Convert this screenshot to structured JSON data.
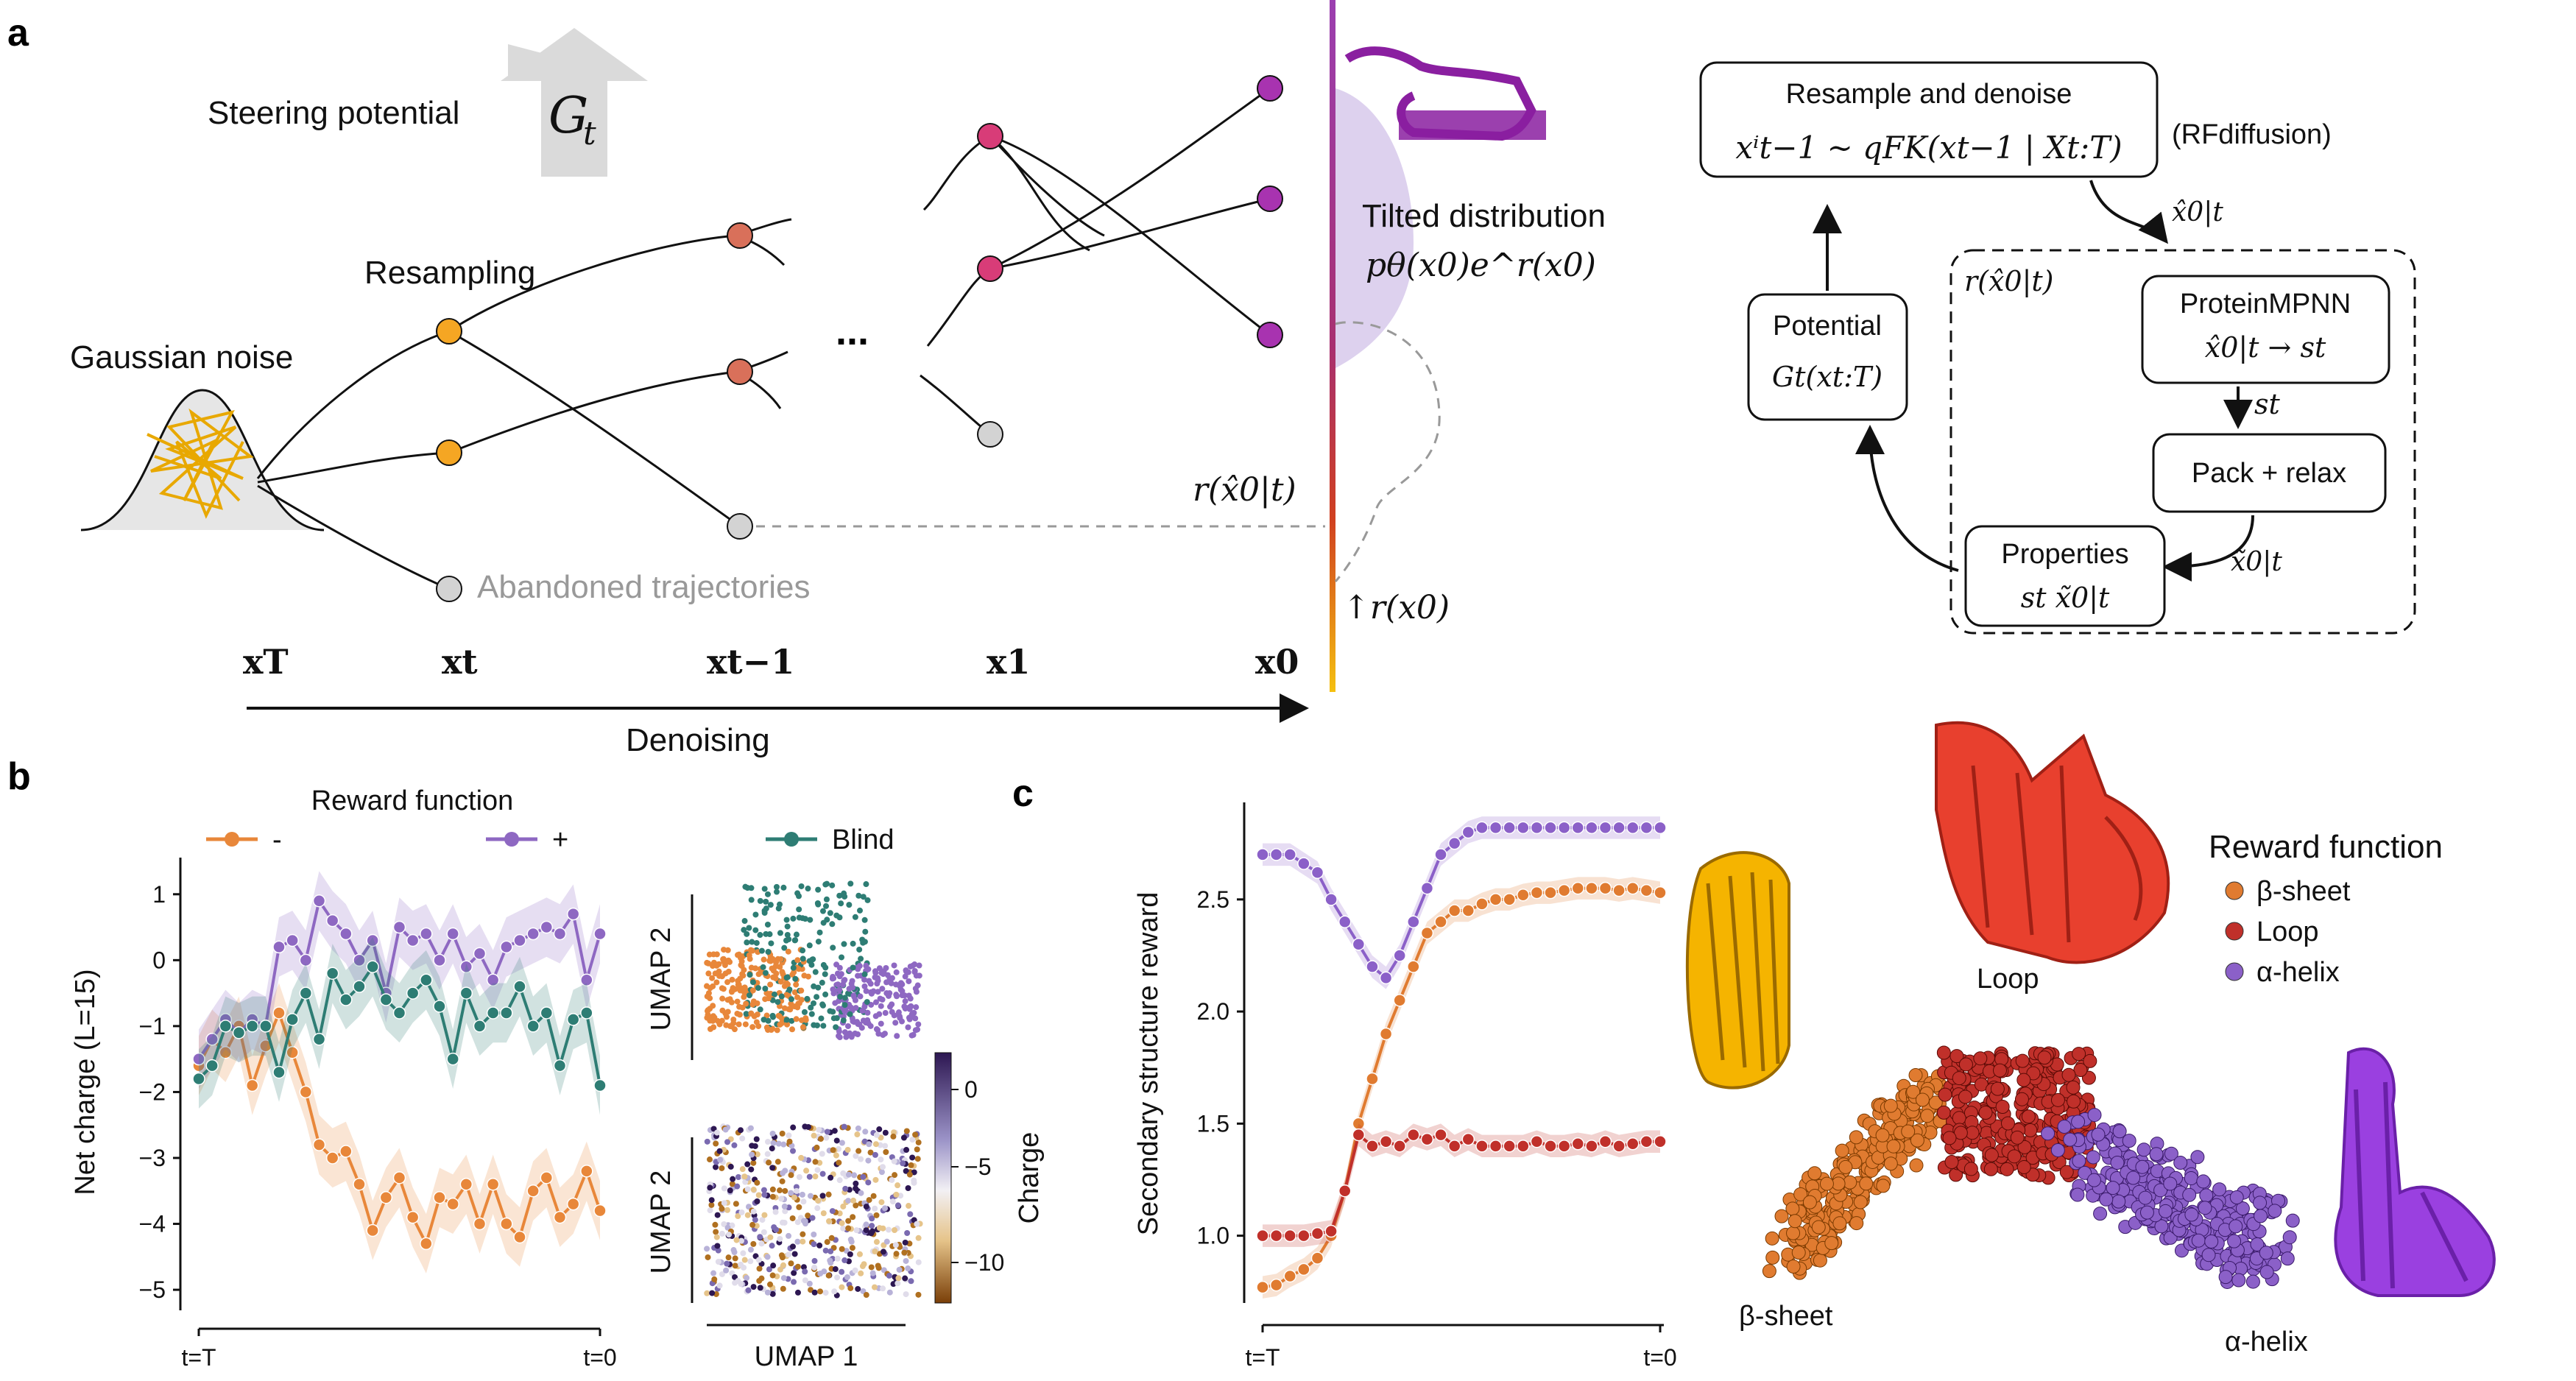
{
  "panel_a": {
    "letter": "a",
    "steering_potential": "Steering potential",
    "gt_symbol": "G",
    "gt_sub": "t",
    "resampling": "Resampling",
    "gaussian_noise": "Gaussian noise",
    "ellipsis": "...",
    "abandoned": "Abandoned trajectories",
    "tilted_title": "Tilted distribution",
    "tilted_formula": "pθ(x0)e^r(x0)",
    "r_hat": "r(x̂0|t)",
    "r_x0": "↑r(x0)",
    "denoising": "Denoising",
    "x_labels": [
      "xT",
      "xt",
      "xt−1",
      "x1",
      "x0"
    ]
  },
  "panel_a_flow": {
    "resample_title": "Resample and denoise",
    "resample_formula": "xⁱt−1 ~ qFK(xt−1 | Xt:T)",
    "rfdiffusion": "(RFdiffusion)",
    "x_hat_top": "x̂0|t",
    "r_hat_box": "r(x̂0|t)",
    "proteinmpnn": "ProteinMPNN",
    "proteinmpnn_formula": "x̂0|t → st",
    "s_t": "st",
    "pack_relax": "Pack + relax",
    "x_tilde": "x̃0|t",
    "potential": "Potential",
    "potential_formula": "Gt(xt:T)",
    "properties": "Properties",
    "properties_formula": "st   x̃0|t"
  },
  "panel_b": {
    "letter": "b",
    "legend_title": "Reward function",
    "legend": [
      {
        "name": "-",
        "color": "#E8873A"
      },
      {
        "name": "+",
        "color": "#8E68C2"
      },
      {
        "name": "Blind",
        "color": "#2E7D74"
      }
    ],
    "ylabel": "Net charge (L=15)",
    "x_start": "t=T",
    "x_end": "t=0",
    "yticks": [
      "1",
      "0",
      "−1",
      "−2",
      "−3",
      "−4",
      "−5"
    ],
    "umap_y": "UMAP 2",
    "umap_x": "UMAP 1",
    "colorbar_label": "Charge",
    "colorbar_ticks": [
      "0",
      "−5",
      "−10"
    ]
  },
  "panel_c": {
    "letter": "c",
    "ylabel": "Secondary structure reward",
    "x_start": "t=T",
    "x_end": "t=0",
    "yticks": [
      "2.5",
      "2.0",
      "1.5",
      "1.0"
    ],
    "legend_title": "Reward function",
    "legend": [
      {
        "name": "β-sheet",
        "color": "#E07B30"
      },
      {
        "name": "Loop",
        "color": "#C0302A"
      },
      {
        "name": "α-helix",
        "color": "#8B60C8"
      }
    ],
    "loop_label": "Loop",
    "sheet_label": "β-sheet",
    "helix_label": "α-helix"
  },
  "chart_data": [
    {
      "type": "line",
      "title": "",
      "xlabel": "",
      "ylabel": "Net charge (L=15)",
      "ylim": [
        -5.2,
        1.5
      ],
      "series": [
        {
          "name": "-",
          "color": "#E8873A",
          "values": [
            -1.6,
            -1.2,
            -1.4,
            -1.0,
            -1.9,
            -1.3,
            -0.8,
            -1.4,
            -2.0,
            -2.8,
            -3.0,
            -2.9,
            -3.4,
            -4.1,
            -3.6,
            -3.3,
            -3.9,
            -4.3,
            -3.6,
            -3.7,
            -3.4,
            -4.0,
            -3.4,
            -4.0,
            -4.2,
            -3.5,
            -3.3,
            -3.9,
            -3.7,
            -3.2,
            -3.8
          ]
        },
        {
          "name": "+",
          "color": "#8E68C2",
          "values": [
            -1.5,
            -1.2,
            -0.9,
            -1.1,
            -0.9,
            -1.0,
            0.2,
            0.3,
            0.0,
            0.9,
            0.6,
            0.4,
            0.0,
            0.3,
            -0.5,
            0.5,
            0.3,
            0.4,
            0.0,
            0.4,
            -0.1,
            0.1,
            -0.3,
            0.2,
            0.3,
            0.4,
            0.5,
            0.4,
            0.7,
            -0.3,
            0.4
          ]
        },
        {
          "name": "Blind",
          "color": "#2E7D74",
          "values": [
            -1.8,
            -1.6,
            -1.0,
            -1.1,
            -1.0,
            -1.0,
            -1.7,
            -0.9,
            -0.5,
            -1.2,
            -0.2,
            -0.6,
            -0.4,
            -0.1,
            -0.6,
            -0.8,
            -0.5,
            -0.3,
            -0.7,
            -1.5,
            -0.5,
            -1.0,
            -0.8,
            -0.8,
            -0.4,
            -1.0,
            -0.8,
            -1.6,
            -0.9,
            -0.8,
            -1.9
          ]
        }
      ]
    },
    {
      "type": "line",
      "title": "",
      "xlabel": "",
      "ylabel": "Secondary structure reward",
      "ylim": [
        0.7,
        2.9
      ],
      "series": [
        {
          "name": "β-sheet",
          "color": "#E07B30",
          "values": [
            0.77,
            0.78,
            0.82,
            0.85,
            0.9,
            1.0,
            1.2,
            1.5,
            1.7,
            1.9,
            2.05,
            2.2,
            2.35,
            2.4,
            2.45,
            2.45,
            2.48,
            2.5,
            2.5,
            2.52,
            2.53,
            2.53,
            2.54,
            2.55,
            2.55,
            2.55,
            2.54,
            2.55,
            2.54,
            2.53
          ]
        },
        {
          "name": "Loop",
          "color": "#C0302A",
          "values": [
            1.0,
            1.0,
            1.0,
            1.0,
            1.01,
            1.02,
            1.2,
            1.45,
            1.4,
            1.42,
            1.4,
            1.45,
            1.43,
            1.45,
            1.4,
            1.43,
            1.4,
            1.4,
            1.4,
            1.4,
            1.42,
            1.4,
            1.4,
            1.41,
            1.4,
            1.42,
            1.4,
            1.41,
            1.42,
            1.42
          ]
        },
        {
          "name": "α-helix",
          "color": "#8B60C8",
          "values": [
            2.7,
            2.7,
            2.7,
            2.66,
            2.62,
            2.5,
            2.4,
            2.3,
            2.2,
            2.15,
            2.25,
            2.4,
            2.55,
            2.7,
            2.75,
            2.8,
            2.82,
            2.82,
            2.82,
            2.82,
            2.82,
            2.82,
            2.82,
            2.82,
            2.82,
            2.82,
            2.82,
            2.82,
            2.82,
            2.82
          ]
        }
      ]
    }
  ]
}
